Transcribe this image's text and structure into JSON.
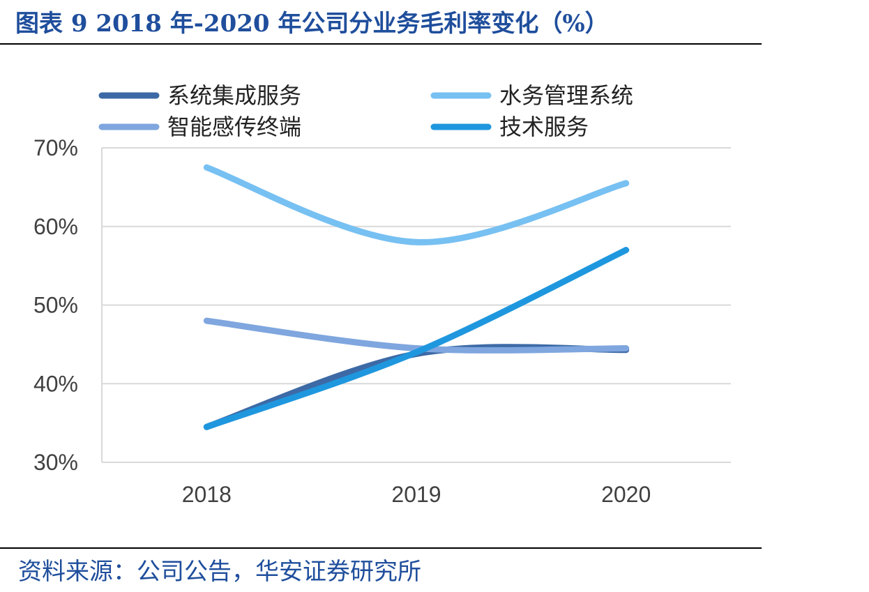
{
  "header": {
    "title": "图表 9 2018 年-2020 年公司分业务毛利率变化（%）"
  },
  "footer": {
    "source": "资料来源：公司公告，华安证券研究所"
  },
  "chart_data": {
    "type": "line",
    "title": "",
    "xlabel": "",
    "ylabel": "",
    "categories": [
      "2018",
      "2019",
      "2020"
    ],
    "ylim": [
      30,
      70
    ],
    "yticks": [
      30,
      40,
      50,
      60,
      70
    ],
    "ytick_labels": [
      "30%",
      "40%",
      "50%",
      "60%",
      "70%"
    ],
    "grid": true,
    "smooth": true,
    "legend_position": "top",
    "series": [
      {
        "name": "系统集成服务",
        "values": [
          34.5,
          43.8,
          44.3
        ],
        "color": "#3d6aa6"
      },
      {
        "name": "水务管理系统",
        "values": [
          67.5,
          58.0,
          65.5
        ],
        "color": "#77c0f2"
      },
      {
        "name": "智能感传终端",
        "values": [
          48.0,
          44.5,
          44.5
        ],
        "color": "#7fa6de"
      },
      {
        "name": "技术服务",
        "values": [
          34.5,
          44.0,
          57.0
        ],
        "color": "#1f97de"
      }
    ]
  }
}
